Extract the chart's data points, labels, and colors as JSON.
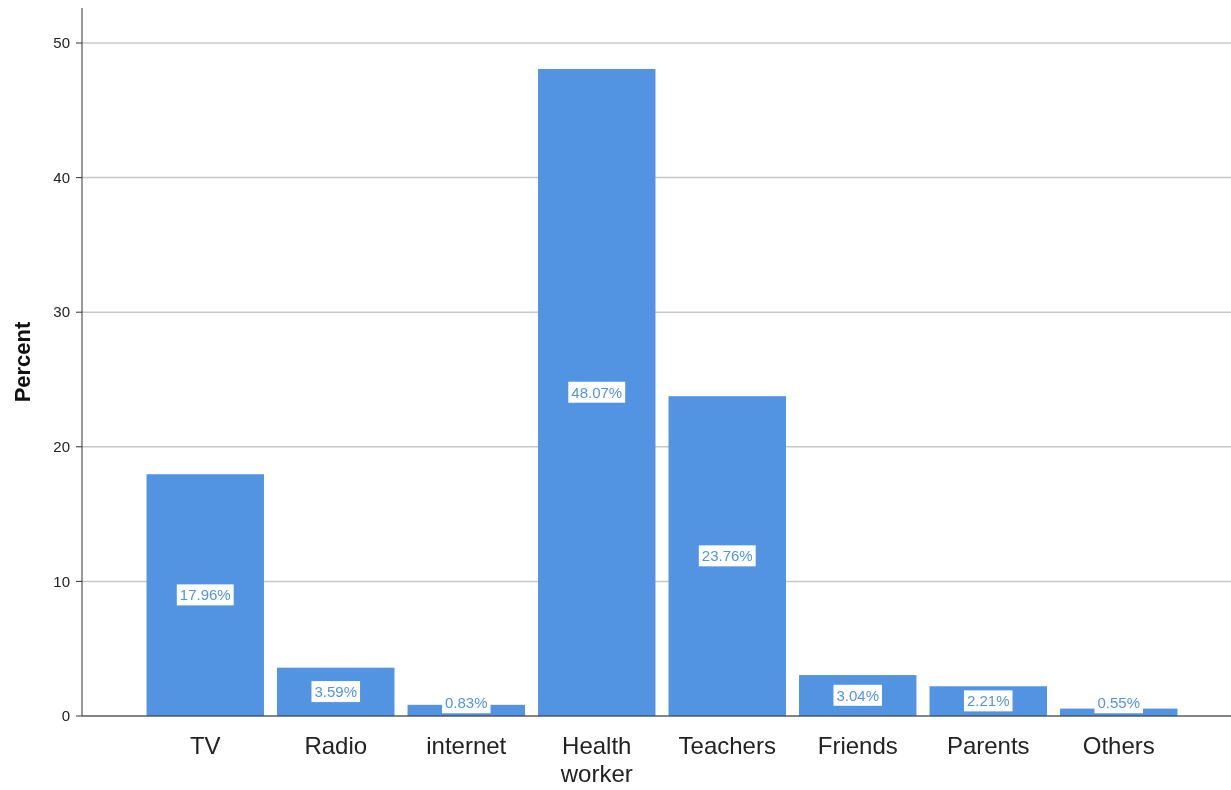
{
  "chart_data": {
    "type": "bar",
    "ylabel": "Percent",
    "categories": [
      "TV",
      "Radio",
      "internet",
      "Health worker",
      "Teachers",
      "Friends",
      "Parents",
      "Others"
    ],
    "values": [
      17.96,
      3.59,
      0.83,
      48.07,
      23.76,
      3.04,
      2.21,
      0.55
    ],
    "value_labels": [
      "17.96%",
      "3.59%",
      "0.83%",
      "48.07%",
      "23.76%",
      "3.04%",
      "2.21%",
      "0.55%"
    ],
    "color": "#5294e2",
    "ylim": [
      0,
      52.6
    ],
    "yticks": [
      0,
      10,
      20,
      30,
      40,
      50
    ],
    "grid": "y"
  }
}
